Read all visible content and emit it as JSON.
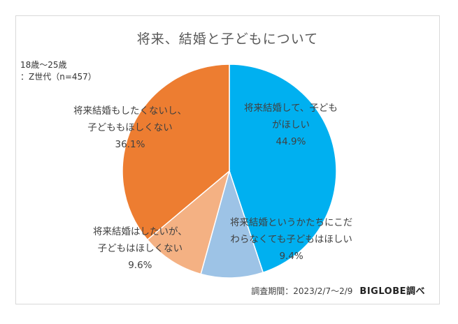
{
  "chart_data": {
    "type": "pie",
    "title": "将来、結婚と子どもについて",
    "sample_note": [
      "18歳～25歳",
      "：Z世代（n=457）"
    ],
    "slices": [
      {
        "label_lines": [
          "将来結婚して、子ども",
          "がほしい"
        ],
        "value": 44.9,
        "value_label": "44.9%",
        "color": "#00b0f0"
      },
      {
        "label_lines": [
          "将来結婚というかたちにこだ",
          "わらなくても子どもはほしい"
        ],
        "value": 9.4,
        "value_label": "9.4%",
        "color": "#9dc3e6"
      },
      {
        "label_lines": [
          "将来結婚はしたいが、",
          "子どもはほしくない"
        ],
        "value": 9.6,
        "value_label": "9.6%",
        "color": "#f4b183"
      },
      {
        "label_lines": [
          "将来結婚もしたくないし、",
          "子どももほしくない"
        ],
        "value": 36.1,
        "value_label": "36.1%",
        "color": "#ed7d31"
      }
    ],
    "start_angle_deg": 0,
    "direction": "clockwise"
  },
  "footer": {
    "survey_period": "調査期間：2023/2/7～2/9",
    "brand": "BIGLOBE調べ"
  }
}
